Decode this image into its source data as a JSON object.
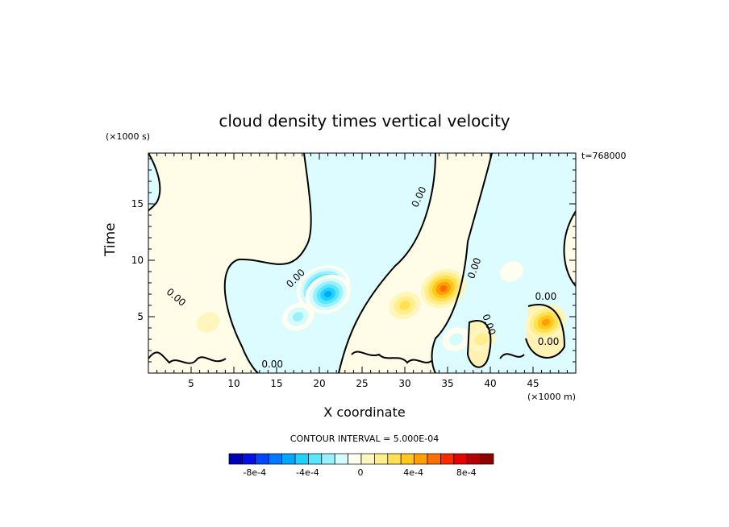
{
  "page": {
    "title": "cloud density times vertical velocity",
    "time_stamp": "t=768000"
  },
  "chart_data": {
    "type": "heatmap",
    "title": "cloud density times vertical velocity",
    "xlabel": "X coordinate",
    "ylabel": "Time",
    "x_unit": "(×1000 m)",
    "y_unit": "(×1000 s)",
    "xlim": [
      0,
      50
    ],
    "ylim": [
      0,
      19.5
    ],
    "x_ticks": [
      5,
      10,
      15,
      20,
      25,
      30,
      35,
      40,
      45
    ],
    "y_ticks": [
      5,
      10,
      15
    ],
    "contour_interval_label": "CONTOUR INTERVAL = 5.000E-04",
    "contour_labels": [
      "0.00",
      "0.00",
      "0.00",
      "0.00",
      "0.00",
      "0.00",
      "0.00",
      "0.00"
    ],
    "colorbar": {
      "levels": [
        -0.0009,
        -0.0008,
        -0.0007,
        -0.0006,
        -0.0005,
        -0.0004,
        -0.0003,
        -0.0002,
        -0.0001,
        0,
        0.0001,
        0.0002,
        0.0003,
        0.0004,
        0.0005,
        0.0006,
        0.0007,
        0.0008,
        0.0009
      ],
      "colors": [
        "#0000b4",
        "#0010e6",
        "#0046ff",
        "#0078ff",
        "#00a8ff",
        "#1ed2ff",
        "#5ae6ff",
        "#9af0ff",
        "#d4fcff",
        "#fffef0",
        "#fff6be",
        "#ffee8c",
        "#ffe050",
        "#ffc81e",
        "#ffa000",
        "#ff6e00",
        "#ff2800",
        "#e60000",
        "#b40000",
        "#8c0000"
      ],
      "tick_labels": [
        "-8e-4",
        "-4e-4",
        "0",
        "4e-4",
        "8e-4"
      ]
    },
    "blobs": [
      {
        "x": 20.5,
        "y": 7.5,
        "value": -0.0008
      },
      {
        "x": 21.0,
        "y": 7.0,
        "value": -0.0006
      },
      {
        "x": 17.5,
        "y": 5.0,
        "value": -0.0003
      },
      {
        "x": 34.5,
        "y": 7.5,
        "value": 0.0006
      },
      {
        "x": 30.0,
        "y": 6.0,
        "value": 0.0003
      },
      {
        "x": 46.5,
        "y": 4.5,
        "value": 0.0005
      },
      {
        "x": 39.0,
        "y": 3.0,
        "value": 0.0002
      },
      {
        "x": 7.0,
        "y": 4.5,
        "value": 0.0001
      },
      {
        "x": 36.0,
        "y": 3.0,
        "value": -0.0002
      },
      {
        "x": 42.5,
        "y": 9.0,
        "value": -0.0001
      }
    ]
  }
}
